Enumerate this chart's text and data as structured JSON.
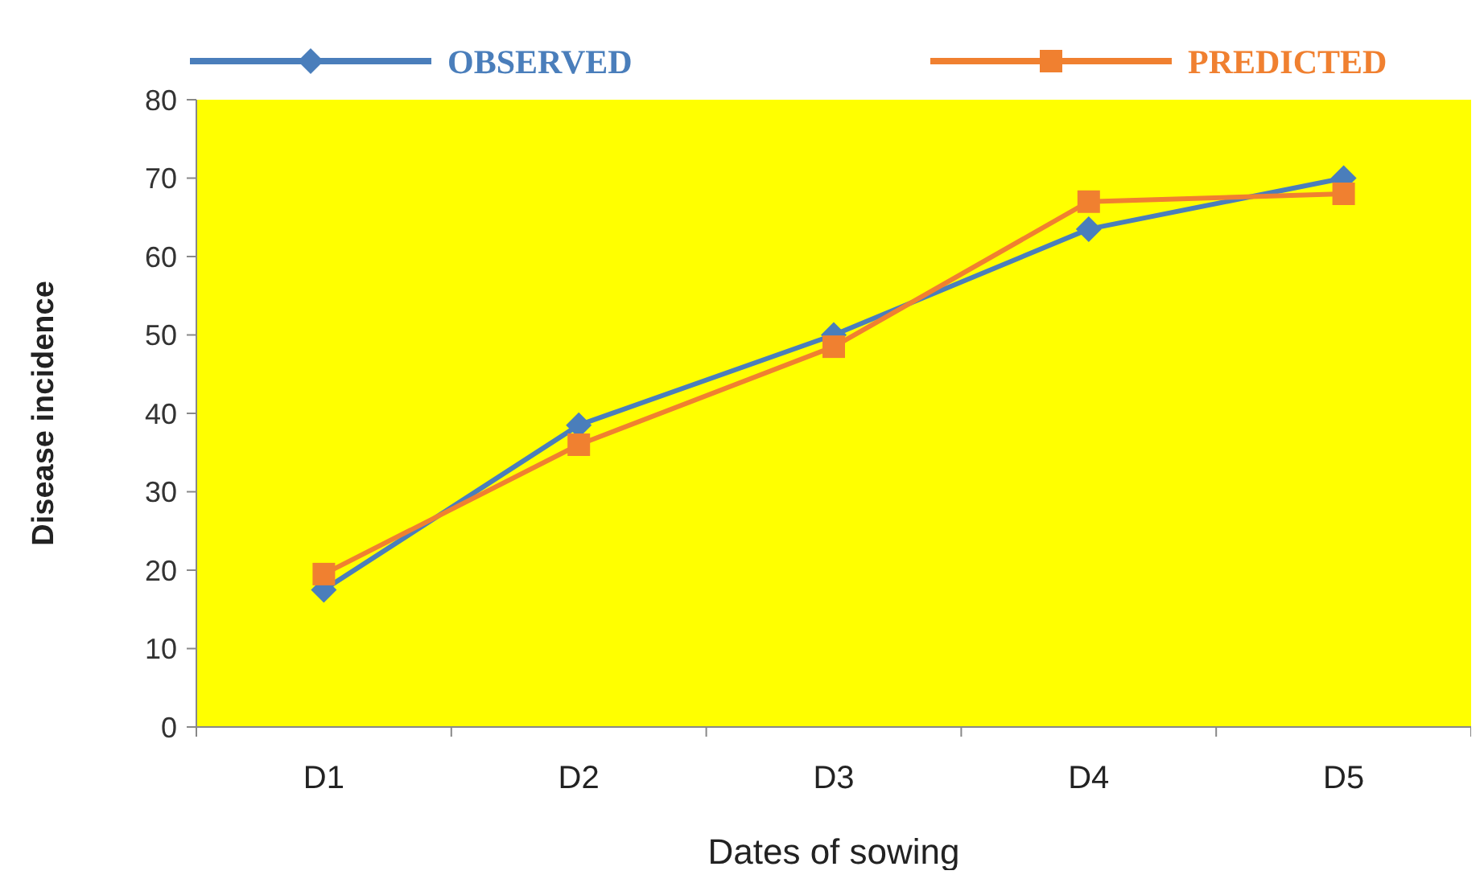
{
  "chart_data": {
    "type": "line",
    "xlabel": "Dates of sowing",
    "ylabel": "Disease incidence",
    "categories": [
      "D1",
      "D2",
      "D3",
      "D4",
      "D5"
    ],
    "series": [
      {
        "name": "OBSERVED",
        "color": "#4a7ebb",
        "marker": "diamond",
        "values": [
          17.5,
          38.5,
          50,
          63.5,
          70
        ]
      },
      {
        "name": "PREDICTED",
        "color": "#f08030",
        "marker": "square",
        "values": [
          19.5,
          36,
          48.5,
          67,
          68
        ]
      }
    ],
    "ylim": [
      0,
      80
    ],
    "yticks": [
      0,
      10,
      20,
      30,
      40,
      50,
      60,
      70,
      80
    ],
    "grid": false,
    "legend": "top"
  }
}
